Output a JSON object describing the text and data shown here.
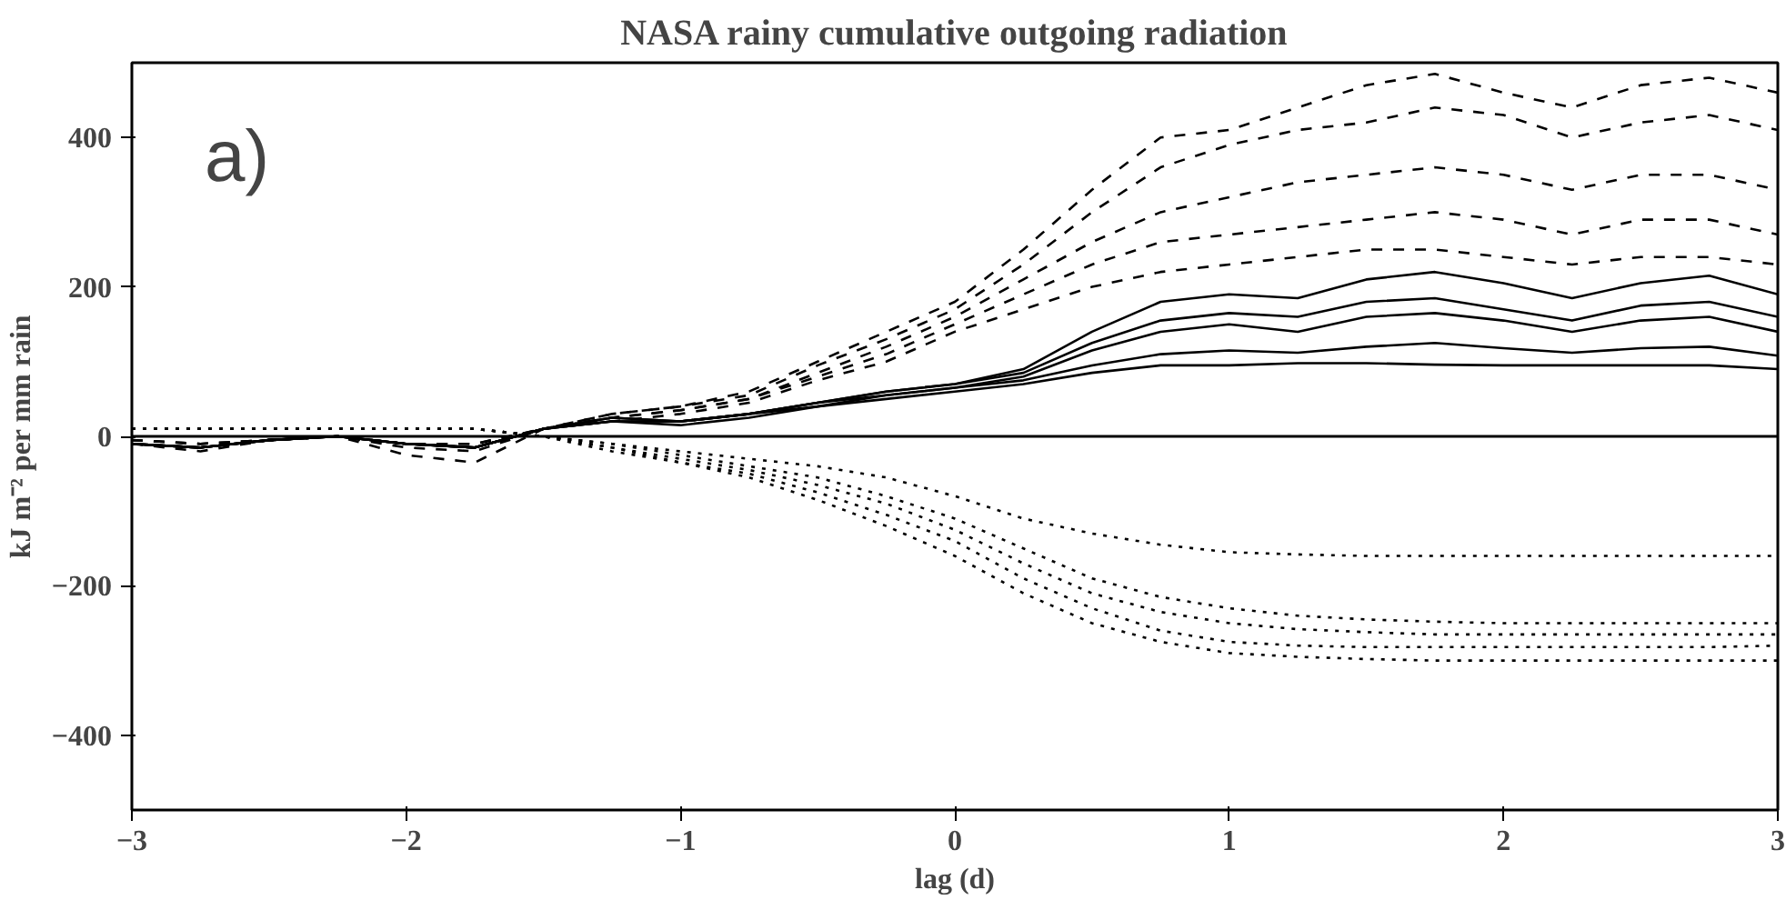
{
  "chart_data": {
    "type": "line",
    "title": "NASA rainy cumulative outgoing radiation",
    "xlabel": "lag (d)",
    "ylabel": "kJ m⁻² per mm rain",
    "annotations": [
      "a)"
    ],
    "x": [
      -3,
      -2.75,
      -2.5,
      -2.25,
      -2,
      -1.75,
      -1.5,
      -1.25,
      -1,
      -0.75,
      -0.5,
      -0.25,
      0,
      0.25,
      0.5,
      0.75,
      1,
      1.25,
      1.5,
      1.75,
      2,
      2.25,
      2.5,
      2.75,
      3
    ],
    "xlim": [
      -3,
      3
    ],
    "xticks": [
      -3,
      -2,
      -1,
      0,
      1,
      2,
      3
    ],
    "ylim": [
      -500,
      500
    ],
    "yticks": [
      -400,
      -200,
      0,
      200,
      400
    ],
    "grid": false,
    "marker": "none",
    "ref_lines": [
      {
        "axis": "y",
        "value": 0,
        "color": "#000000",
        "line_style": "solid"
      }
    ],
    "series": [
      {
        "color": "#000000",
        "line_style": "dashed",
        "values": [
          -10,
          -20,
          -5,
          0,
          -25,
          -35,
          10,
          30,
          40,
          60,
          100,
          140,
          180,
          250,
          330,
          400,
          410,
          440,
          470,
          485,
          460,
          440,
          470,
          480,
          460
        ]
      },
      {
        "color": "#000000",
        "line_style": "dashed",
        "values": [
          -10,
          -15,
          -5,
          0,
          -15,
          -20,
          10,
          30,
          40,
          55,
          95,
          130,
          170,
          230,
          300,
          360,
          390,
          410,
          420,
          440,
          430,
          400,
          420,
          430,
          410
        ]
      },
      {
        "color": "#000000",
        "line_style": "dashed",
        "values": [
          -5,
          -10,
          -5,
          0,
          -10,
          -15,
          10,
          25,
          35,
          50,
          85,
          120,
          160,
          210,
          260,
          300,
          320,
          340,
          350,
          360,
          350,
          330,
          350,
          350,
          330
        ]
      },
      {
        "color": "#000000",
        "line_style": "dashed",
        "values": [
          -5,
          -10,
          -5,
          0,
          -10,
          -10,
          10,
          25,
          35,
          50,
          80,
          110,
          150,
          190,
          230,
          260,
          270,
          280,
          290,
          300,
          290,
          270,
          290,
          290,
          270
        ]
      },
      {
        "color": "#000000",
        "line_style": "dashed",
        "values": [
          -5,
          -10,
          -5,
          0,
          -10,
          -10,
          10,
          20,
          30,
          45,
          75,
          100,
          140,
          170,
          200,
          220,
          230,
          240,
          250,
          250,
          240,
          230,
          240,
          240,
          230
        ]
      },
      {
        "color": "#000000",
        "line_style": "solid",
        "values": [
          -10,
          -15,
          -5,
          0,
          -10,
          -15,
          10,
          25,
          20,
          30,
          45,
          60,
          70,
          90,
          140,
          180,
          190,
          185,
          210,
          220,
          205,
          185,
          205,
          215,
          190
        ]
      },
      {
        "color": "#000000",
        "line_style": "solid",
        "values": [
          -10,
          -15,
          -5,
          0,
          -10,
          -15,
          10,
          25,
          20,
          30,
          45,
          60,
          70,
          85,
          125,
          155,
          165,
          160,
          180,
          185,
          170,
          155,
          175,
          180,
          160
        ]
      },
      {
        "color": "#000000",
        "line_style": "solid",
        "values": [
          -10,
          -15,
          -5,
          0,
          -10,
          -15,
          10,
          20,
          20,
          30,
          45,
          55,
          65,
          80,
          115,
          140,
          150,
          140,
          160,
          165,
          155,
          140,
          155,
          160,
          140
        ]
      },
      {
        "color": "#000000",
        "line_style": "solid",
        "values": [
          -10,
          -15,
          -5,
          0,
          -10,
          -15,
          10,
          20,
          20,
          30,
          40,
          55,
          65,
          75,
          95,
          110,
          115,
          112,
          120,
          125,
          118,
          112,
          118,
          120,
          108
        ]
      },
      {
        "color": "#000000",
        "line_style": "solid",
        "values": [
          -10,
          -15,
          -5,
          0,
          -10,
          -15,
          10,
          20,
          15,
          25,
          40,
          50,
          60,
          70,
          85,
          95,
          95,
          98,
          98,
          96,
          95,
          95,
          95,
          95,
          90
        ]
      },
      {
        "color": "#000000",
        "line_style": "dotted",
        "values": [
          10,
          10,
          10,
          10,
          10,
          10,
          0,
          -10,
          -20,
          -30,
          -40,
          -55,
          -80,
          -110,
          -130,
          -145,
          -155,
          -158,
          -160,
          -160,
          -160,
          -160,
          -160,
          -160,
          -160
        ]
      },
      {
        "color": "#000000",
        "line_style": "dotted",
        "values": [
          10,
          10,
          10,
          10,
          10,
          10,
          0,
          -10,
          -25,
          -40,
          -55,
          -80,
          -110,
          -150,
          -190,
          -215,
          -230,
          -240,
          -245,
          -248,
          -250,
          -250,
          -250,
          -250,
          -250
        ]
      },
      {
        "color": "#000000",
        "line_style": "dotted",
        "values": [
          10,
          10,
          10,
          10,
          10,
          10,
          0,
          -15,
          -30,
          -45,
          -65,
          -90,
          -125,
          -170,
          -210,
          -235,
          -250,
          -258,
          -262,
          -265,
          -265,
          -265,
          -265,
          -265,
          -265
        ]
      },
      {
        "color": "#000000",
        "line_style": "dotted",
        "values": [
          10,
          10,
          10,
          10,
          10,
          10,
          0,
          -15,
          -35,
          -50,
          -75,
          -105,
          -140,
          -190,
          -230,
          -260,
          -275,
          -280,
          -282,
          -282,
          -282,
          -282,
          -282,
          -282,
          -280
        ]
      },
      {
        "color": "#000000",
        "line_style": "dotted",
        "values": [
          10,
          10,
          10,
          10,
          10,
          10,
          0,
          -20,
          -35,
          -55,
          -85,
          -120,
          -160,
          -210,
          -250,
          -275,
          -290,
          -295,
          -298,
          -300,
          -300,
          -300,
          -300,
          -300,
          -300
        ]
      }
    ]
  }
}
